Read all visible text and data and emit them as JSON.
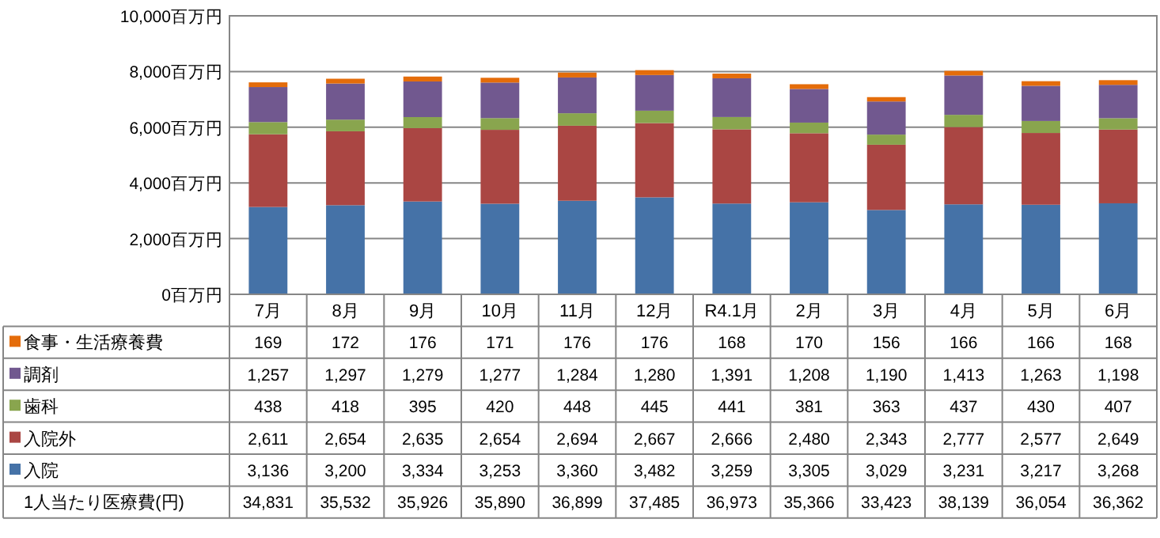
{
  "chart_data": {
    "type": "bar",
    "stacked": true,
    "grid": "y",
    "legend": "left",
    "categories": [
      "7月",
      "8月",
      "9月",
      "10月",
      "11月",
      "12月",
      "R4.1月",
      "2月",
      "3月",
      "4月",
      "5月",
      "6月"
    ],
    "ylim": [
      0,
      10000
    ],
    "yticks": [
      {
        "value": 0,
        "label": "0百万円"
      },
      {
        "value": 2000,
        "label": "2,000百万円"
      },
      {
        "value": 4000,
        "label": "4,000百万円"
      },
      {
        "value": 6000,
        "label": "6,000百万円"
      },
      {
        "value": 8000,
        "label": "8,000百万円"
      },
      {
        "value": 10000,
        "label": "10,000百万円"
      }
    ],
    "series": [
      {
        "name": "入院",
        "color": "#4572a7",
        "values": [
          3136,
          3200,
          3334,
          3253,
          3360,
          3482,
          3259,
          3305,
          3029,
          3231,
          3217,
          3268
        ],
        "value_labels": [
          "3,136",
          "3,200",
          "3,334",
          "3,253",
          "3,360",
          "3,482",
          "3,259",
          "3,305",
          "3,029",
          "3,231",
          "3,217",
          "3,268"
        ]
      },
      {
        "name": "入院外",
        "color": "#aa4643",
        "values": [
          2611,
          2654,
          2635,
          2654,
          2694,
          2667,
          2666,
          2480,
          2343,
          2777,
          2577,
          2649
        ],
        "value_labels": [
          "2,611",
          "2,654",
          "2,635",
          "2,654",
          "2,694",
          "2,667",
          "2,666",
          "2,480",
          "2,343",
          "2,777",
          "2,577",
          "2,649"
        ]
      },
      {
        "name": "歯科",
        "color": "#89a54e",
        "values": [
          438,
          418,
          395,
          420,
          448,
          445,
          441,
          381,
          363,
          437,
          430,
          407
        ],
        "value_labels": [
          "438",
          "418",
          "395",
          "420",
          "448",
          "445",
          "441",
          "381",
          "363",
          "437",
          "430",
          "407"
        ]
      },
      {
        "name": "調剤",
        "color": "#71588f",
        "values": [
          1257,
          1297,
          1279,
          1277,
          1284,
          1280,
          1391,
          1208,
          1190,
          1413,
          1263,
          1198
        ],
        "value_labels": [
          "1,257",
          "1,297",
          "1,279",
          "1,277",
          "1,284",
          "1,280",
          "1,391",
          "1,208",
          "1,190",
          "1,413",
          "1,263",
          "1,198"
        ]
      },
      {
        "name": "食事・生活療養費",
        "color": "#e46c0a",
        "values": [
          169,
          172,
          176,
          171,
          176,
          176,
          168,
          170,
          156,
          166,
          166,
          168
        ],
        "value_labels": [
          "169",
          "172",
          "176",
          "171",
          "176",
          "176",
          "168",
          "170",
          "156",
          "166",
          "166",
          "168"
        ]
      }
    ],
    "annotations": [
      "1人当たり医療費(円)",
      "34,831",
      "35,532",
      "35,926",
      "35,890",
      "36,899",
      "37,485",
      "36,973",
      "35,366",
      "33,423",
      "38,139",
      "36,054",
      "36,362"
    ]
  }
}
